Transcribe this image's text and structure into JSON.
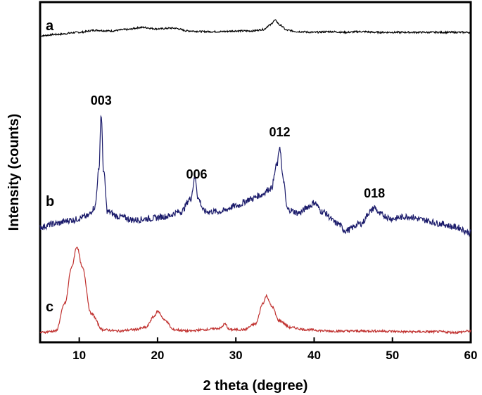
{
  "chart_data": {
    "type": "line",
    "title": "",
    "xlabel": "2 theta (degree)",
    "ylabel": "Intensity (counts)",
    "xlim": [
      5,
      60
    ],
    "xticks": [
      10,
      20,
      30,
      40,
      50,
      60
    ],
    "yticks_shown": false,
    "grid": false,
    "legend": "none",
    "series": [
      {
        "name": "a",
        "color": "#000000",
        "points": [
          [
            5,
            50
          ],
          [
            7,
            52
          ],
          [
            10,
            55
          ],
          [
            12,
            58
          ],
          [
            14,
            57
          ],
          [
            16,
            59
          ],
          [
            18,
            62
          ],
          [
            20,
            60
          ],
          [
            22,
            61
          ],
          [
            24,
            57
          ],
          [
            26,
            56
          ],
          [
            28,
            56
          ],
          [
            30,
            57
          ],
          [
            32,
            57
          ],
          [
            33.5,
            59
          ],
          [
            34.3,
            65
          ],
          [
            35.0,
            72
          ],
          [
            35.7,
            65
          ],
          [
            36.5,
            58
          ],
          [
            38,
            56
          ],
          [
            40,
            55
          ],
          [
            42,
            56
          ],
          [
            44,
            55
          ],
          [
            46,
            56
          ],
          [
            48,
            55
          ],
          [
            50,
            55
          ],
          [
            52,
            55
          ],
          [
            54,
            55
          ],
          [
            56,
            55
          ],
          [
            58,
            55
          ],
          [
            60,
            55
          ]
        ]
      },
      {
        "name": "b",
        "color": "#1b1b6b",
        "points": [
          [
            5,
            240
          ],
          [
            7,
            245
          ],
          [
            9,
            250
          ],
          [
            11,
            255
          ],
          [
            12.0,
            268
          ],
          [
            12.5,
            320
          ],
          [
            12.8,
            400
          ],
          [
            13.1,
            320
          ],
          [
            13.6,
            262
          ],
          [
            15,
            255
          ],
          [
            17,
            250
          ],
          [
            19,
            252
          ],
          [
            21,
            255
          ],
          [
            23,
            262
          ],
          [
            24.2,
            280
          ],
          [
            24.8,
            310
          ],
          [
            25.2,
            280
          ],
          [
            26,
            262
          ],
          [
            28,
            262
          ],
          [
            30,
            270
          ],
          [
            32,
            280
          ],
          [
            33,
            285
          ],
          [
            34.5,
            295
          ],
          [
            35.3,
            330
          ],
          [
            35.6,
            355
          ],
          [
            36.0,
            310
          ],
          [
            36.6,
            265
          ],
          [
            38,
            260
          ],
          [
            39.5,
            270
          ],
          [
            40.0,
            275
          ],
          [
            41,
            262
          ],
          [
            43,
            245
          ],
          [
            44,
            235
          ],
          [
            46,
            245
          ],
          [
            47.2,
            262
          ],
          [
            47.7,
            268
          ],
          [
            48.4,
            258
          ],
          [
            50,
            252
          ],
          [
            52,
            255
          ],
          [
            54,
            250
          ],
          [
            56,
            245
          ],
          [
            58,
            240
          ],
          [
            60,
            232
          ]
        ]
      },
      {
        "name": "c",
        "color": "#c0302e",
        "points": [
          [
            5,
            8
          ],
          [
            7,
            10
          ],
          [
            8.2,
            50
          ],
          [
            9.0,
            100
          ],
          [
            9.7,
            130
          ],
          [
            10.4,
            100
          ],
          [
            11.5,
            35
          ],
          [
            13,
            12
          ],
          [
            15,
            10
          ],
          [
            17,
            12
          ],
          [
            18.5,
            15
          ],
          [
            19.5,
            30
          ],
          [
            20.0,
            38
          ],
          [
            21.0,
            25
          ],
          [
            22,
            12
          ],
          [
            24,
            10
          ],
          [
            26,
            12
          ],
          [
            28,
            14
          ],
          [
            28.6,
            20
          ],
          [
            29.2,
            12
          ],
          [
            31,
            12
          ],
          [
            32.5,
            20
          ],
          [
            33.5,
            50
          ],
          [
            33.9,
            60
          ],
          [
            34.6,
            45
          ],
          [
            35.5,
            25
          ],
          [
            37,
            15
          ],
          [
            39,
            12
          ],
          [
            42,
            10
          ],
          [
            45,
            10
          ],
          [
            48,
            10
          ],
          [
            52,
            9
          ],
          [
            56,
            9
          ],
          [
            58,
            8
          ],
          [
            60,
            10
          ]
        ]
      }
    ],
    "series_labels": [
      "a",
      "b",
      "c"
    ],
    "annotations": [
      {
        "text": "003",
        "x": 12.8,
        "series": "b"
      },
      {
        "text": "006",
        "x": 25.0,
        "series": "b"
      },
      {
        "text": "012",
        "x": 35.6,
        "series": "b"
      },
      {
        "text": "018",
        "x": 47.7,
        "series": "b"
      }
    ]
  }
}
